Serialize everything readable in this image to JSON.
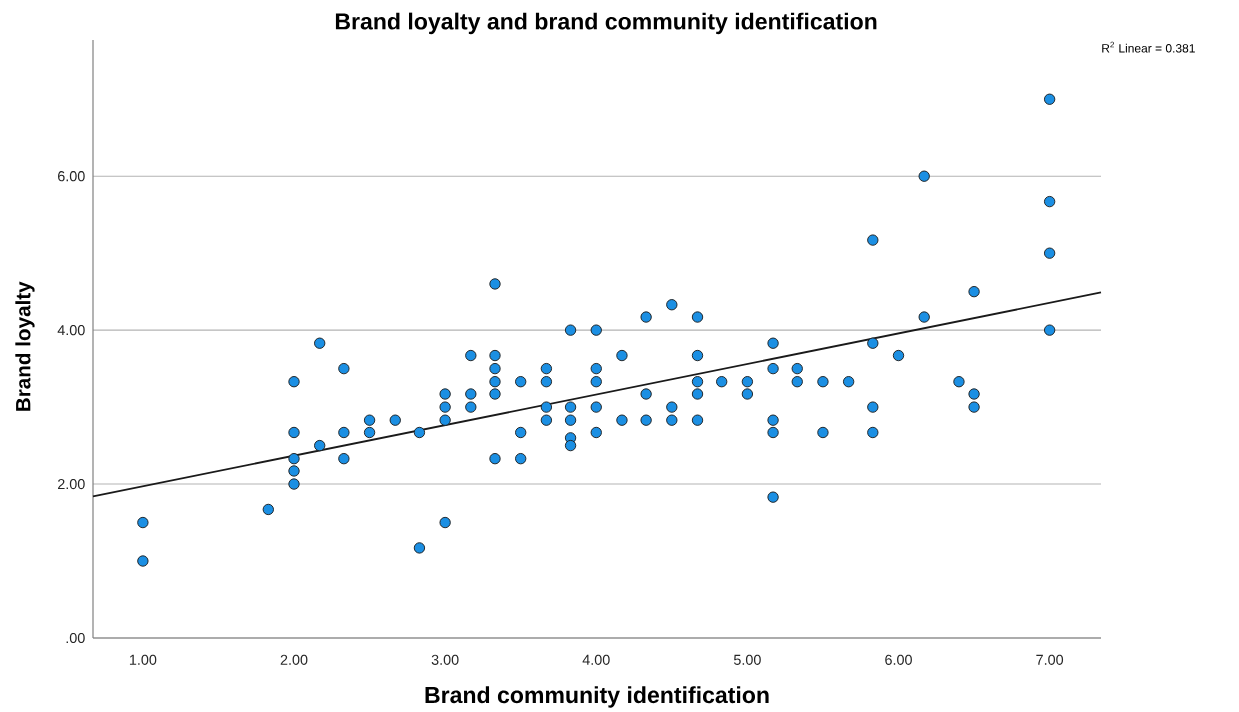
{
  "chart_data": {
    "type": "scatter",
    "title": "Brand loyalty and brand community identification",
    "xlabel": "Brand community identification",
    "ylabel": "Brand loyalty",
    "annotations": [
      "R$^{2}$ Linear = 0.381"
    ],
    "xlim": [
      0.67,
      7.34
    ],
    "ylim": [
      0,
      7.77
    ],
    "xticks": [
      {
        "value": 1,
        "label": "1.00"
      },
      {
        "value": 2,
        "label": "2.00"
      },
      {
        "value": 3,
        "label": "3.00"
      },
      {
        "value": 4,
        "label": "4.00"
      },
      {
        "value": 5,
        "label": "5.00"
      },
      {
        "value": 6,
        "label": "6.00"
      },
      {
        "value": 7,
        "label": "7.00"
      }
    ],
    "yticks": [
      {
        "value": 0,
        "label": ".00"
      },
      {
        "value": 2,
        "label": "2.00"
      },
      {
        "value": 4,
        "label": "4.00"
      },
      {
        "value": 6,
        "label": "6.00"
      }
    ],
    "grid": "y",
    "series": [
      {
        "marker": "circle",
        "color": "#1b8fe3",
        "x": [
          1.0,
          1.0,
          1.83,
          2.0,
          2.0,
          2.0,
          2.0,
          2.0,
          2.17,
          2.17,
          2.33,
          2.33,
          2.33,
          2.5,
          2.5,
          2.67,
          2.83,
          2.83,
          3.0,
          3.0,
          3.0,
          3.0,
          3.17,
          3.17,
          3.17,
          3.33,
          3.33,
          3.33,
          3.33,
          3.33,
          3.33,
          3.5,
          3.5,
          3.5,
          3.67,
          3.67,
          3.67,
          3.67,
          3.83,
          3.83,
          3.83,
          3.83,
          3.83,
          4.0,
          4.0,
          4.0,
          4.0,
          4.0,
          4.17,
          4.17,
          4.33,
          4.33,
          4.33,
          4.5,
          4.5,
          4.5,
          4.67,
          4.67,
          4.67,
          4.67,
          4.67,
          4.83,
          5.0,
          5.0,
          5.17,
          5.17,
          5.17,
          5.17,
          5.17,
          5.33,
          5.33,
          5.5,
          5.5,
          5.67,
          5.83,
          5.83,
          5.83,
          5.83,
          6.0,
          6.17,
          6.17,
          6.4,
          6.5,
          6.5,
          6.5,
          7.0,
          7.0,
          7.0,
          7.0
        ],
        "values": [
          1.5,
          1.0,
          1.67,
          3.33,
          2.67,
          2.33,
          2.17,
          2.0,
          3.83,
          2.5,
          3.5,
          2.67,
          2.33,
          2.83,
          2.67,
          2.83,
          2.67,
          1.17,
          3.17,
          3.0,
          2.83,
          1.5,
          3.67,
          3.17,
          3.0,
          4.6,
          3.67,
          3.5,
          3.33,
          3.17,
          2.33,
          3.33,
          2.67,
          2.33,
          3.5,
          3.33,
          3.0,
          2.83,
          4.0,
          3.0,
          2.83,
          2.6,
          2.5,
          4.0,
          3.5,
          3.33,
          3.0,
          2.67,
          3.67,
          2.83,
          4.17,
          3.17,
          2.83,
          4.33,
          3.0,
          2.83,
          4.17,
          3.67,
          3.33,
          3.17,
          2.83,
          3.33,
          3.33,
          3.17,
          3.83,
          3.5,
          2.83,
          2.67,
          1.83,
          3.5,
          3.33,
          3.33,
          2.67,
          3.33,
          5.17,
          3.83,
          3.0,
          2.67,
          3.67,
          6.0,
          4.17,
          3.33,
          4.5,
          3.17,
          3.0,
          7.0,
          5.67,
          5.0,
          4.0
        ]
      },
      {
        "type": "line",
        "color": "#1a1a1a",
        "x": [
          0.67,
          7.34
        ],
        "values": [
          1.84,
          4.49
        ]
      }
    ]
  }
}
